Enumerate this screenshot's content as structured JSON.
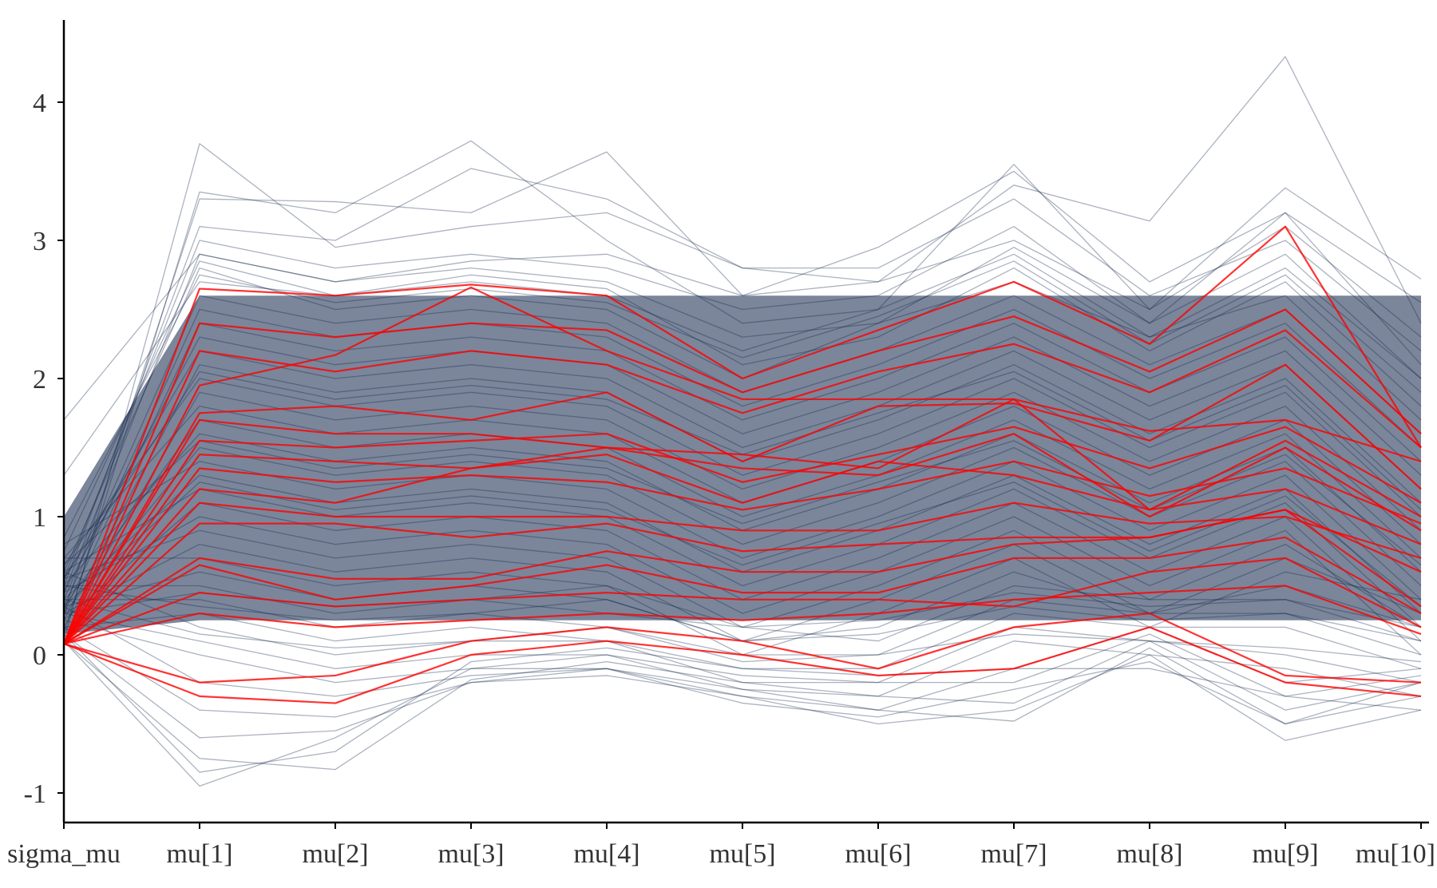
{
  "chart_data": {
    "type": "line",
    "subtype": "parallel-coordinates",
    "title": "",
    "xlabel": "",
    "ylabel": "",
    "categories": [
      "sigma_mu",
      "mu[1]",
      "mu[2]",
      "mu[3]",
      "mu[4]",
      "mu[5]",
      "mu[6]",
      "mu[7]",
      "mu[8]",
      "mu[9]",
      "mu[10]"
    ],
    "yticks": [
      "-1",
      "0",
      "1",
      "2",
      "3",
      "4"
    ],
    "ylim": [
      -1.2,
      4.6
    ],
    "grid": false,
    "legend": "none",
    "colors": {
      "regular_draws": "#0f2347",
      "divergent_draws": "#ff0000",
      "axis": "#000000",
      "text": "#333333"
    },
    "series": [
      {
        "group": "regular",
        "values": [
          0.1,
          3.7,
          2.95,
          3.1,
          3.2,
          2.8,
          2.7,
          3.4,
          3.14,
          4.33,
          2.4
        ]
      },
      {
        "group": "regular",
        "values": [
          0.15,
          3.35,
          3.2,
          3.72,
          3.0,
          2.4,
          2.5,
          3.55,
          2.5,
          3.38,
          2.72
        ]
      },
      {
        "group": "regular",
        "values": [
          0.3,
          3.3,
          3.28,
          3.2,
          3.64,
          2.6,
          2.95,
          3.5,
          2.7,
          3.2,
          2.55
        ]
      },
      {
        "group": "regular",
        "values": [
          0.5,
          3.1,
          3.0,
          3.52,
          3.3,
          2.8,
          2.8,
          3.3,
          2.6,
          3.0,
          2.2
        ]
      },
      {
        "group": "regular",
        "values": [
          1.7,
          2.9,
          2.7,
          2.8,
          2.7,
          2.3,
          2.4,
          2.95,
          2.4,
          2.9,
          2.0
        ]
      },
      {
        "group": "regular",
        "values": [
          1.3,
          2.7,
          2.6,
          2.75,
          2.65,
          2.1,
          2.3,
          2.8,
          2.2,
          2.7,
          1.8
        ]
      },
      {
        "group": "regular",
        "values": [
          0.6,
          2.8,
          2.5,
          2.6,
          2.5,
          2.0,
          2.4,
          2.7,
          2.3,
          2.6,
          1.7
        ]
      },
      {
        "group": "regular",
        "values": [
          0.4,
          2.6,
          2.4,
          2.5,
          2.4,
          1.9,
          2.2,
          2.6,
          2.1,
          2.5,
          1.6
        ]
      },
      {
        "group": "regular",
        "values": [
          0.35,
          2.5,
          2.3,
          2.4,
          2.3,
          1.8,
          2.1,
          2.5,
          2.0,
          2.4,
          1.5
        ]
      },
      {
        "group": "regular",
        "values": [
          0.3,
          2.4,
          2.2,
          2.3,
          2.2,
          1.7,
          2.0,
          2.4,
          1.9,
          2.3,
          1.4
        ]
      },
      {
        "group": "regular",
        "values": [
          0.45,
          2.3,
          2.1,
          2.2,
          2.1,
          1.6,
          1.9,
          2.3,
          1.8,
          2.2,
          1.3
        ]
      },
      {
        "group": "regular",
        "values": [
          0.55,
          2.2,
          2.0,
          2.1,
          2.0,
          1.5,
          1.8,
          2.2,
          1.7,
          2.1,
          1.2
        ]
      },
      {
        "group": "regular",
        "values": [
          0.25,
          2.1,
          1.9,
          2.0,
          1.9,
          1.4,
          1.7,
          2.1,
          1.6,
          2.0,
          1.1
        ]
      },
      {
        "group": "regular",
        "values": [
          0.65,
          2.0,
          1.8,
          1.9,
          1.8,
          1.3,
          1.6,
          2.0,
          1.5,
          1.9,
          1.0
        ]
      },
      {
        "group": "regular",
        "values": [
          0.2,
          1.9,
          1.7,
          1.8,
          1.7,
          1.2,
          1.5,
          1.9,
          1.4,
          1.8,
          0.9
        ]
      },
      {
        "group": "regular",
        "values": [
          0.7,
          1.8,
          1.6,
          1.7,
          1.6,
          1.1,
          1.4,
          1.8,
          1.3,
          1.7,
          0.8
        ]
      },
      {
        "group": "regular",
        "values": [
          0.35,
          1.7,
          1.5,
          1.6,
          1.5,
          1.0,
          1.3,
          1.7,
          1.2,
          1.6,
          0.7
        ]
      },
      {
        "group": "regular",
        "values": [
          0.5,
          1.6,
          1.4,
          1.5,
          1.4,
          0.9,
          1.2,
          1.6,
          1.1,
          1.5,
          0.6
        ]
      },
      {
        "group": "regular",
        "values": [
          0.3,
          1.5,
          1.3,
          1.4,
          1.3,
          0.8,
          1.1,
          1.5,
          1.0,
          1.4,
          0.5
        ]
      },
      {
        "group": "regular",
        "values": [
          0.8,
          1.4,
          1.2,
          1.3,
          1.2,
          0.7,
          1.0,
          1.4,
          0.9,
          1.3,
          0.4
        ]
      },
      {
        "group": "regular",
        "values": [
          0.4,
          1.3,
          1.1,
          1.2,
          1.1,
          0.6,
          0.9,
          1.3,
          0.8,
          1.2,
          0.3
        ]
      },
      {
        "group": "regular",
        "values": [
          0.6,
          1.2,
          1.0,
          1.1,
          1.0,
          0.5,
          0.8,
          1.2,
          0.7,
          1.1,
          0.2
        ]
      },
      {
        "group": "regular",
        "values": [
          0.25,
          1.1,
          0.9,
          1.0,
          0.9,
          0.4,
          0.7,
          1.1,
          0.6,
          1.0,
          0.1
        ]
      },
      {
        "group": "regular",
        "values": [
          0.45,
          1.0,
          0.8,
          0.9,
          0.8,
          0.3,
          0.6,
          1.0,
          0.5,
          0.9,
          0.0
        ]
      },
      {
        "group": "regular",
        "values": [
          0.55,
          0.9,
          0.7,
          0.8,
          0.7,
          0.2,
          0.5,
          0.9,
          0.4,
          0.8,
          0.2
        ]
      },
      {
        "group": "regular",
        "values": [
          0.3,
          0.8,
          0.6,
          0.7,
          0.6,
          0.1,
          0.4,
          0.8,
          0.3,
          0.7,
          0.3
        ]
      },
      {
        "group": "regular",
        "values": [
          0.7,
          0.7,
          0.5,
          0.6,
          0.5,
          0.0,
          0.3,
          0.7,
          0.2,
          0.6,
          0.4
        ]
      },
      {
        "group": "regular",
        "values": [
          0.35,
          0.6,
          0.4,
          0.5,
          0.4,
          0.1,
          0.2,
          0.6,
          0.3,
          0.5,
          0.2
        ]
      },
      {
        "group": "regular",
        "values": [
          0.5,
          0.5,
          0.3,
          0.4,
          0.3,
          0.2,
          0.1,
          0.5,
          0.4,
          0.4,
          0.1
        ]
      },
      {
        "group": "regular",
        "values": [
          0.4,
          0.4,
          0.2,
          0.3,
          0.2,
          0.0,
          0.0,
          0.4,
          0.3,
          0.3,
          0.0
        ]
      },
      {
        "group": "regular",
        "values": [
          0.2,
          0.3,
          0.1,
          0.2,
          0.1,
          -0.1,
          -0.1,
          0.3,
          0.2,
          0.2,
          -0.1
        ]
      },
      {
        "group": "regular",
        "values": [
          0.6,
          0.2,
          0.0,
          0.1,
          0.1,
          -0.2,
          -0.2,
          0.2,
          0.1,
          0.0,
          -0.2
        ]
      },
      {
        "group": "regular",
        "values": [
          0.3,
          0.1,
          -0.1,
          0.0,
          0.0,
          -0.25,
          -0.3,
          0.1,
          0.0,
          -0.1,
          -0.3
        ]
      },
      {
        "group": "regular",
        "values": [
          0.25,
          0.0,
          -0.2,
          -0.1,
          -0.1,
          -0.3,
          -0.4,
          -0.1,
          -0.1,
          -0.3,
          -0.4
        ]
      },
      {
        "group": "regular",
        "values": [
          0.35,
          -0.2,
          -0.3,
          -0.15,
          -0.1,
          -0.35,
          -0.45,
          -0.25,
          -0.05,
          -0.5,
          -0.2
        ]
      },
      {
        "group": "regular",
        "values": [
          0.2,
          -0.4,
          -0.45,
          -0.2,
          -0.15,
          -0.3,
          -0.5,
          -0.4,
          0.0,
          -0.62,
          -0.4
        ]
      },
      {
        "group": "regular",
        "values": [
          0.15,
          -0.6,
          -0.55,
          -0.2,
          -0.1,
          -0.25,
          -0.4,
          -0.48,
          0.05,
          -0.5,
          -0.3
        ]
      },
      {
        "group": "regular",
        "values": [
          0.1,
          -0.75,
          -0.83,
          -0.18,
          -0.05,
          -0.2,
          -0.3,
          -0.35,
          0.1,
          -0.4,
          -0.2
        ]
      },
      {
        "group": "regular",
        "values": [
          0.1,
          -0.95,
          -0.6,
          -0.1,
          0.0,
          -0.15,
          -0.2,
          -0.2,
          0.15,
          -0.3,
          -0.15
        ]
      },
      {
        "group": "regular",
        "values": [
          0.15,
          -0.85,
          -0.7,
          -0.05,
          0.05,
          -0.1,
          -0.15,
          -0.1,
          0.2,
          -0.2,
          -0.1
        ]
      },
      {
        "group": "regular",
        "values": [
          0.55,
          3.0,
          2.8,
          2.9,
          2.8,
          2.5,
          2.6,
          3.1,
          2.4,
          3.2,
          2.1
        ]
      },
      {
        "group": "regular",
        "values": [
          0.45,
          2.9,
          2.7,
          2.85,
          2.9,
          2.6,
          2.7,
          3.0,
          2.5,
          3.1,
          2.3
        ]
      },
      {
        "group": "regular",
        "values": [
          0.75,
          2.85,
          2.6,
          2.7,
          2.6,
          2.2,
          2.5,
          2.9,
          2.3,
          2.8,
          2.0
        ]
      },
      {
        "group": "regular",
        "values": [
          0.85,
          2.75,
          2.55,
          2.65,
          2.55,
          2.15,
          2.45,
          2.85,
          2.25,
          2.75,
          1.9
        ]
      },
      {
        "group": "regular",
        "values": [
          0.5,
          0.35,
          0.25,
          0.3,
          0.4,
          0.1,
          0.15,
          0.35,
          0.25,
          0.3,
          0.1
        ]
      },
      {
        "group": "regular",
        "values": [
          0.3,
          0.45,
          0.35,
          0.4,
          0.5,
          0.2,
          0.25,
          0.45,
          0.35,
          0.4,
          0.2
        ]
      },
      {
        "group": "regular",
        "values": [
          0.4,
          0.15,
          0.05,
          0.1,
          0.2,
          -0.05,
          0.0,
          0.15,
          0.1,
          0.05,
          -0.05
        ]
      },
      {
        "group": "regular",
        "values": [
          0.65,
          1.55,
          1.35,
          1.45,
          1.35,
          0.95,
          1.25,
          1.55,
          1.05,
          1.45,
          0.65
        ]
      },
      {
        "group": "regular",
        "values": [
          0.35,
          1.25,
          1.05,
          1.15,
          1.05,
          0.65,
          0.95,
          1.25,
          0.75,
          1.15,
          0.35
        ]
      },
      {
        "group": "regular",
        "values": [
          0.55,
          2.05,
          1.85,
          1.95,
          1.85,
          1.45,
          1.75,
          2.05,
          1.55,
          1.95,
          1.05
        ]
      },
      {
        "group": "divergent",
        "values": [
          0.08,
          2.65,
          2.6,
          2.68,
          2.6,
          2.0,
          2.35,
          2.7,
          2.25,
          3.1,
          1.5
        ]
      },
      {
        "group": "divergent",
        "values": [
          0.08,
          1.95,
          2.17,
          2.66,
          2.2,
          1.85,
          1.85,
          1.85,
          1.62,
          1.7,
          1.4
        ]
      },
      {
        "group": "divergent",
        "values": [
          0.08,
          1.75,
          1.8,
          1.7,
          1.9,
          1.4,
          1.8,
          1.82,
          1.55,
          2.1,
          1.2
        ]
      },
      {
        "group": "divergent",
        "values": [
          0.08,
          1.7,
          1.6,
          1.6,
          1.5,
          1.45,
          1.35,
          1.85,
          1.05,
          1.55,
          1.0
        ]
      },
      {
        "group": "divergent",
        "values": [
          0.08,
          1.45,
          1.4,
          1.35,
          1.5,
          1.35,
          1.3,
          1.6,
          1.0,
          1.5,
          0.9
        ]
      },
      {
        "group": "divergent",
        "values": [
          0.08,
          1.2,
          1.1,
          1.35,
          1.45,
          1.1,
          1.4,
          1.3,
          1.05,
          1.2,
          0.8
        ]
      },
      {
        "group": "divergent",
        "values": [
          0.08,
          1.1,
          1.0,
          1.0,
          1.0,
          0.9,
          0.9,
          1.1,
          0.95,
          1.0,
          0.7
        ]
      },
      {
        "group": "divergent",
        "values": [
          0.08,
          0.95,
          0.95,
          0.85,
          0.95,
          0.75,
          0.8,
          0.85,
          0.85,
          1.05,
          0.6
        ]
      },
      {
        "group": "divergent",
        "values": [
          0.08,
          0.7,
          0.55,
          0.55,
          0.75,
          0.6,
          0.6,
          0.8,
          0.85,
          1.05,
          0.35
        ]
      },
      {
        "group": "divergent",
        "values": [
          0.08,
          0.65,
          0.4,
          0.5,
          0.65,
          0.45,
          0.45,
          0.7,
          0.7,
          0.85,
          0.3
        ]
      },
      {
        "group": "divergent",
        "values": [
          0.08,
          0.45,
          0.35,
          0.4,
          0.45,
          0.4,
          0.4,
          0.35,
          0.6,
          0.7,
          0.2
        ]
      },
      {
        "group": "divergent",
        "values": [
          0.08,
          0.3,
          0.2,
          0.25,
          0.3,
          0.25,
          0.3,
          0.4,
          0.45,
          0.5,
          0.15
        ]
      },
      {
        "group": "divergent",
        "values": [
          0.08,
          -0.2,
          -0.15,
          0.1,
          0.2,
          0.1,
          -0.1,
          0.2,
          0.3,
          -0.15,
          -0.2
        ]
      },
      {
        "group": "divergent",
        "values": [
          0.08,
          -0.3,
          -0.35,
          0.0,
          0.1,
          0.0,
          -0.15,
          -0.1,
          0.2,
          -0.2,
          -0.3
        ]
      },
      {
        "group": "divergent",
        "values": [
          0.08,
          2.4,
          2.3,
          2.4,
          2.35,
          1.9,
          2.2,
          2.45,
          2.05,
          2.5,
          1.6
        ]
      },
      {
        "group": "divergent",
        "values": [
          0.08,
          2.2,
          2.05,
          2.2,
          2.1,
          1.75,
          2.05,
          2.25,
          1.9,
          2.35,
          1.5
        ]
      },
      {
        "group": "divergent",
        "values": [
          0.08,
          1.55,
          1.5,
          1.55,
          1.6,
          1.25,
          1.45,
          1.65,
          1.35,
          1.65,
          1.1
        ]
      },
      {
        "group": "divergent",
        "values": [
          0.08,
          1.35,
          1.25,
          1.3,
          1.25,
          1.05,
          1.2,
          1.4,
          1.15,
          1.35,
          0.95
        ]
      }
    ]
  }
}
